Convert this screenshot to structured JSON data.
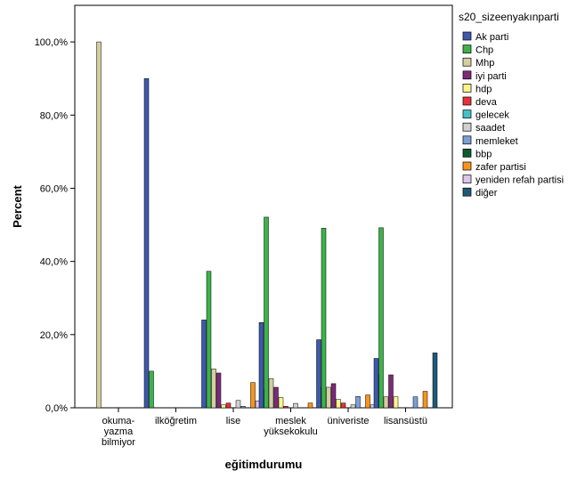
{
  "chart_data": {
    "type": "bar",
    "xlabel": "eğitimdurumu",
    "ylabel": "Percent",
    "ylim": [
      0,
      110
    ],
    "y_ticks": [
      "0,0%",
      "20,0%",
      "40,0%",
      "60,0%",
      "80,0%",
      "100,0%"
    ],
    "grid": false,
    "legend_position": "right",
    "legend_title": "s20_sizeenyakınparti",
    "categories": [
      [
        "okuma-",
        "yazma",
        "bilmiyor"
      ],
      [
        "ilköğretim"
      ],
      [
        "lise"
      ],
      [
        "meslek",
        "yüksekokulu"
      ],
      [
        "üniveriste"
      ],
      [
        "lisansüstü"
      ]
    ],
    "series": [
      {
        "name": "Ak parti",
        "color": "#3e58ac",
        "values": [
          0,
          90,
          24,
          23.3,
          18.6,
          13.5
        ]
      },
      {
        "name": "Chp",
        "color": "#3cb34a",
        "values": [
          0,
          10,
          37.3,
          52.1,
          49.1,
          49.2
        ]
      },
      {
        "name": "Mhp",
        "color": "#d4cfa0",
        "values": [
          100,
          0,
          10.6,
          8,
          5.6,
          3
        ]
      },
      {
        "name": "iyi parti",
        "color": "#7d2a7a",
        "values": [
          0,
          0,
          9.5,
          5.6,
          6.6,
          9
        ]
      },
      {
        "name": "hdp",
        "color": "#fbf58c",
        "values": [
          0,
          0,
          0.8,
          2.8,
          2.3,
          3
        ]
      },
      {
        "name": "deva",
        "color": "#e8313a",
        "values": [
          0,
          0,
          1.3,
          0.4,
          1.3,
          0
        ]
      },
      {
        "name": "gelecek",
        "color": "#46c0c7",
        "values": [
          0,
          0,
          0,
          0,
          0,
          0
        ]
      },
      {
        "name": "saadet",
        "color": "#d0d0d0",
        "values": [
          0,
          0,
          2,
          1.2,
          0.8,
          0
        ]
      },
      {
        "name": "memleket",
        "color": "#7c9fd3",
        "values": [
          0,
          0,
          0.4,
          0,
          3.1,
          3
        ]
      },
      {
        "name": "bbp",
        "color": "#0f5c2c",
        "values": [
          0,
          0,
          0,
          0,
          0,
          0
        ]
      },
      {
        "name": "zafer partisi",
        "color": "#f7941d",
        "values": [
          0,
          0,
          6.9,
          1.3,
          3.5,
          4.5
        ]
      },
      {
        "name": "yeniden refah partisi",
        "color": "#dcc6ea",
        "values": [
          0,
          0,
          1.9,
          0,
          0.8,
          0
        ]
      },
      {
        "name": "diğer",
        "color": "#1e5a78",
        "values": [
          0,
          0,
          5,
          5.6,
          8.9,
          15
        ]
      }
    ]
  }
}
